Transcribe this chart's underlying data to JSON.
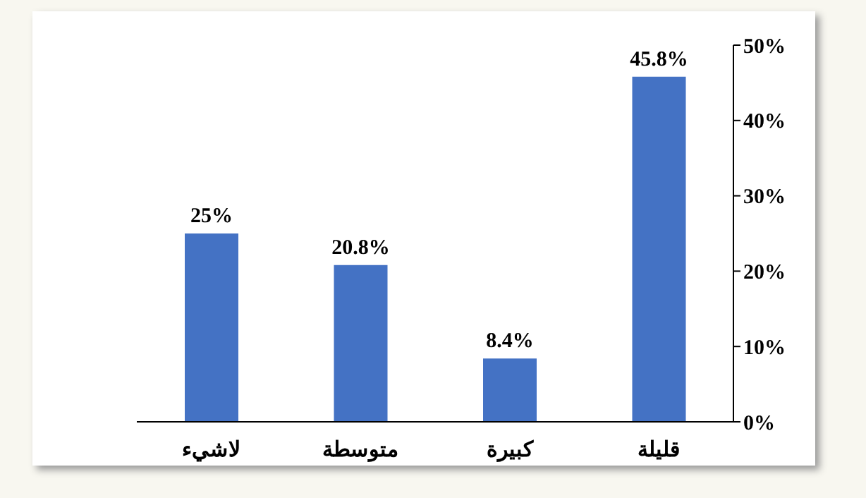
{
  "chart_data": {
    "type": "bar",
    "categories": [
      "لاشيء",
      "متوسطة",
      "كبيرة",
      "قليلة"
    ],
    "values": [
      25,
      20.8,
      8.4,
      45.8
    ],
    "value_labels": [
      "25%",
      "20.8%",
      "8.4%",
      "45.8%"
    ],
    "color": "#4472c4",
    "ylim": [
      0,
      50
    ],
    "yticks": [
      {
        "value": 0,
        "label": "0%"
      },
      {
        "value": 10,
        "label": "10%"
      },
      {
        "value": 20,
        "label": "20%"
      },
      {
        "value": 30,
        "label": "30%"
      },
      {
        "value": 40,
        "label": "40%"
      },
      {
        "value": 50,
        "label": "50%"
      }
    ],
    "grid": false,
    "legend": false
  }
}
